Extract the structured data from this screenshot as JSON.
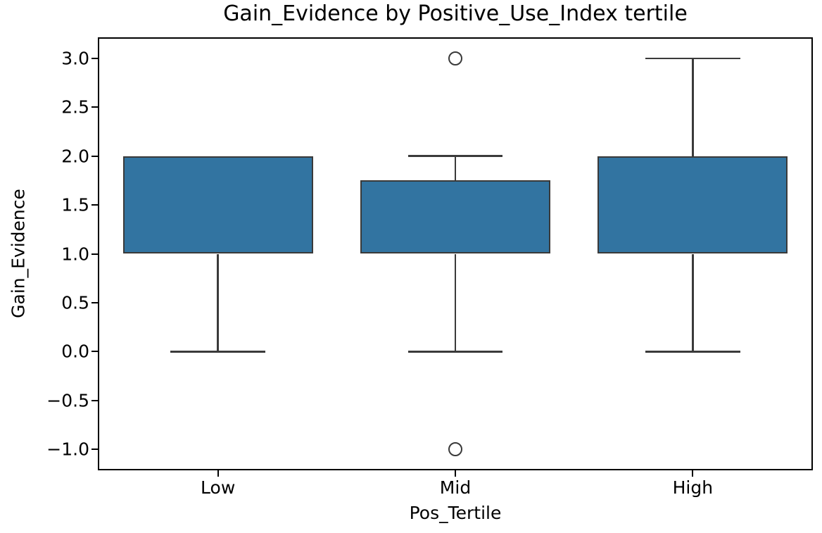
{
  "chart_data": {
    "type": "boxplot",
    "title": "Gain_Evidence by Positive_Use_Index tertile",
    "xlabel": "Pos_Tertile",
    "ylabel": "Gain_Evidence",
    "categories": [
      "Low",
      "Mid",
      "High"
    ],
    "ylim": [
      -1.2,
      3.2
    ],
    "grid": false,
    "yticks": [
      {
        "value": 3.0,
        "label": "3.0"
      },
      {
        "value": 2.5,
        "label": "2.5"
      },
      {
        "value": 2.0,
        "label": "2.0"
      },
      {
        "value": 1.5,
        "label": "1.5"
      },
      {
        "value": 1.0,
        "label": "1.0"
      },
      {
        "value": 0.5,
        "label": "0.5"
      },
      {
        "value": 0.0,
        "label": "0.0"
      },
      {
        "value": -0.5,
        "label": "−0.5"
      },
      {
        "value": -1.0,
        "label": "−1.0"
      }
    ],
    "boxes": [
      {
        "category": "Low",
        "q1": 1.0,
        "q3": 2.0,
        "median": null,
        "whisker_low": 0.0,
        "whisker_high": 2.0,
        "outliers": []
      },
      {
        "category": "Mid",
        "q1": 1.0,
        "q3": 1.75,
        "median": null,
        "whisker_low": 0.0,
        "whisker_high": 2.0,
        "outliers": [
          3.0,
          -1.0
        ]
      },
      {
        "category": "High",
        "q1": 1.0,
        "q3": 2.0,
        "median": null,
        "whisker_low": 0.0,
        "whisker_high": 3.0,
        "outliers": []
      }
    ],
    "median_note": "no separate median line visible; medians coincide with box edges",
    "style": {
      "box_fill": "#3274a1",
      "line_color": "#3a3a3a",
      "spine_color": "#000000",
      "text_color": "#000000",
      "background": "#ffffff"
    }
  }
}
